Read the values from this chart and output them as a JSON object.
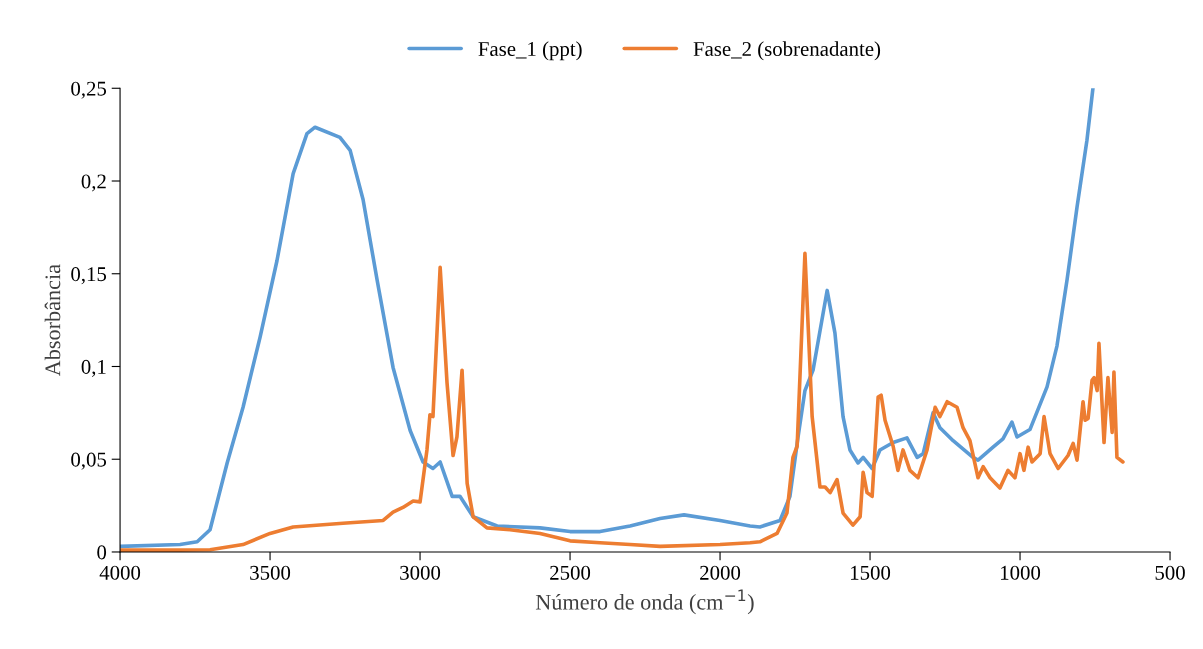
{
  "chart_data": {
    "type": "line",
    "xlabel": "Número de onda (cm$^{−1}$)",
    "ylabel": "Absorbância",
    "xlim": [
      4000,
      500
    ],
    "xticks": [
      4000,
      3500,
      3000,
      2500,
      2000,
      1500,
      1000,
      500
    ],
    "ylim": [
      0,
      0.25
    ],
    "yticks": [
      {
        "value": 0,
        "label": "0"
      },
      {
        "value": 0.05,
        "label": "0,05"
      },
      {
        "value": 0.1,
        "label": "0,1"
      },
      {
        "value": 0.15,
        "label": "0,15"
      },
      {
        "value": 0.2,
        "label": "0,2"
      },
      {
        "value": 0.25,
        "label": "0,25"
      }
    ],
    "grid": false,
    "legend": "top",
    "marker": "none",
    "line_style": "solid",
    "series": [
      {
        "name": "Fase_1 (ppt)",
        "color": "#5b9bd5",
        "x": [
          4000,
          3800,
          3743,
          3700,
          3643,
          3590,
          3533,
          3477,
          3423,
          3377,
          3350,
          3267,
          3233,
          3190,
          3143,
          3090,
          3033,
          2990,
          2957,
          2933,
          2893,
          2867,
          2823,
          2743,
          2600,
          2500,
          2400,
          2300,
          2200,
          2120,
          2000,
          1900,
          1867,
          1800,
          1767,
          1740,
          1717,
          1690,
          1643,
          1617,
          1590,
          1567,
          1540,
          1523,
          1493,
          1467,
          1423,
          1377,
          1343,
          1323,
          1290,
          1267,
          1223,
          1157,
          1140,
          1090,
          1057,
          1027,
          1010,
          967,
          910,
          877,
          843,
          810,
          777,
          757
        ],
        "values": [
          0.003,
          0.004,
          0.0055,
          0.012,
          0.048,
          0.078,
          0.116,
          0.157,
          0.204,
          0.2255,
          0.229,
          0.2235,
          0.2165,
          0.19,
          0.1465,
          0.0995,
          0.0655,
          0.0485,
          0.045,
          0.0485,
          0.03,
          0.03,
          0.019,
          0.014,
          0.013,
          0.011,
          0.011,
          0.014,
          0.018,
          0.02,
          0.017,
          0.014,
          0.0135,
          0.017,
          0.03,
          0.062,
          0.087,
          0.098,
          0.141,
          0.118,
          0.073,
          0.055,
          0.048,
          0.051,
          0.045,
          0.055,
          0.059,
          0.0615,
          0.051,
          0.053,
          0.075,
          0.067,
          0.06,
          0.051,
          0.0495,
          0.0565,
          0.061,
          0.07,
          0.062,
          0.066,
          0.089,
          0.111,
          0.147,
          0.186,
          0.222,
          0.25
        ]
      },
      {
        "name": "Fase_2 (sobrenadante)",
        "color": "#ed7d31",
        "x": [
          4000,
          3800,
          3700,
          3590,
          3500,
          3423,
          3257,
          3123,
          3090,
          3057,
          3023,
          3000,
          2977,
          2967,
          2957,
          2933,
          2910,
          2890,
          2877,
          2860,
          2843,
          2823,
          2777,
          2700,
          2600,
          2500,
          2400,
          2300,
          2200,
          2000,
          1900,
          1867,
          1810,
          1777,
          1757,
          1743,
          1717,
          1693,
          1667,
          1650,
          1633,
          1610,
          1590,
          1557,
          1533,
          1523,
          1510,
          1493,
          1473,
          1463,
          1450,
          1423,
          1407,
          1390,
          1367,
          1340,
          1310,
          1283,
          1267,
          1243,
          1210,
          1190,
          1167,
          1140,
          1123,
          1100,
          1067,
          1040,
          1017,
          1000,
          987,
          973,
          960,
          933,
          920,
          900,
          873,
          840,
          823,
          810,
          790,
          783,
          773,
          760,
          753,
          743,
          737,
          720,
          707,
          693,
          687,
          677,
          657
        ],
        "values": [
          0.001,
          0.001,
          0.0012,
          0.004,
          0.01,
          0.0135,
          0.0155,
          0.017,
          0.0215,
          0.024,
          0.0275,
          0.027,
          0.055,
          0.074,
          0.073,
          0.1535,
          0.091,
          0.052,
          0.062,
          0.098,
          0.037,
          0.019,
          0.013,
          0.012,
          0.01,
          0.006,
          0.005,
          0.004,
          0.003,
          0.004,
          0.005,
          0.0055,
          0.01,
          0.021,
          0.051,
          0.057,
          0.161,
          0.073,
          0.035,
          0.035,
          0.032,
          0.039,
          0.021,
          0.0145,
          0.019,
          0.043,
          0.032,
          0.03,
          0.0835,
          0.0845,
          0.071,
          0.057,
          0.044,
          0.055,
          0.044,
          0.04,
          0.055,
          0.078,
          0.073,
          0.081,
          0.078,
          0.067,
          0.06,
          0.04,
          0.046,
          0.04,
          0.0345,
          0.044,
          0.04,
          0.053,
          0.044,
          0.0565,
          0.0485,
          0.053,
          0.073,
          0.053,
          0.045,
          0.052,
          0.0585,
          0.0495,
          0.081,
          0.071,
          0.072,
          0.0925,
          0.094,
          0.087,
          0.1125,
          0.059,
          0.094,
          0.0645,
          0.097,
          0.051,
          0.0485
        ]
      }
    ]
  }
}
